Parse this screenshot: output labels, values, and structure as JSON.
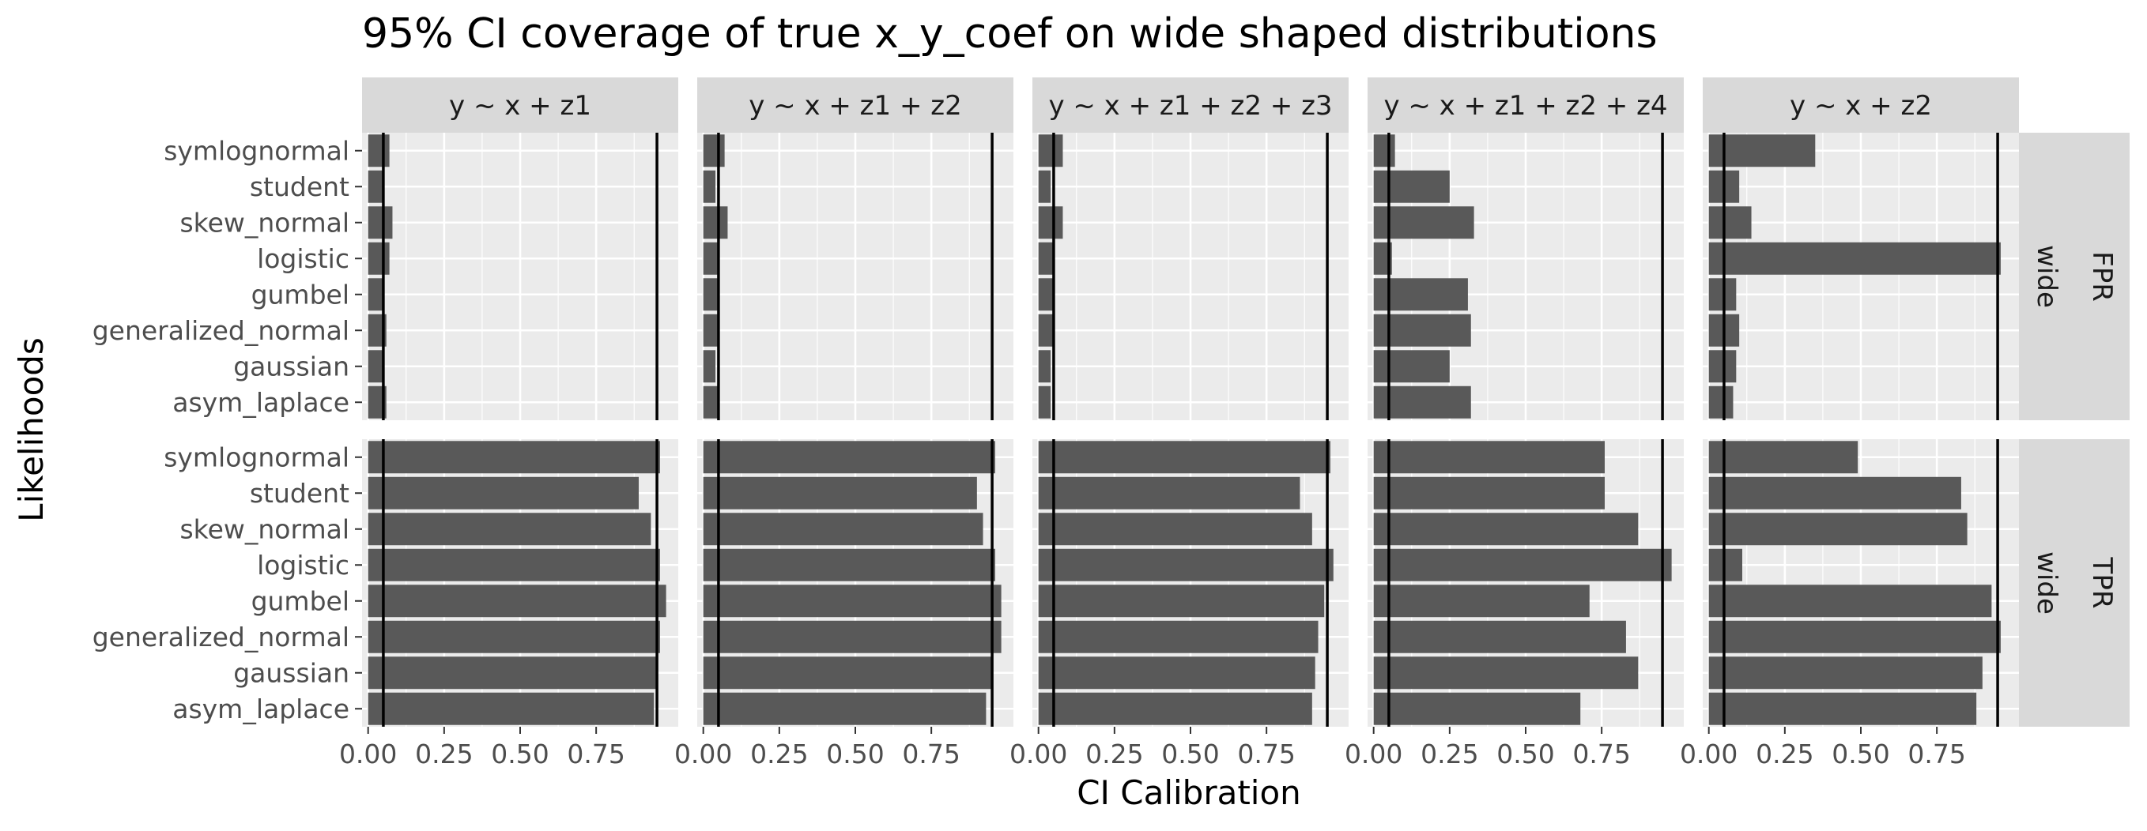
{
  "chart_data": {
    "type": "bar",
    "orientation": "horizontal",
    "title": "95% CI coverage of true x_y_coef on wide shaped distributions",
    "xlabel": "CI Calibration",
    "ylabel": "Likelihoods",
    "xlim": [
      -0.02,
      1.02
    ],
    "x_ticks": [
      "0.00",
      "0.25",
      "0.50",
      "0.75"
    ],
    "reference_lines": [
      0.05,
      0.95
    ],
    "grid": true,
    "categories": [
      "symlognormal",
      "student",
      "skew_normal",
      "logistic",
      "gumbel",
      "generalized_normal",
      "gaussian",
      "asym_laplace"
    ],
    "columns": [
      "y ~ x + z1",
      "y ~ x + z1 + z2",
      "y ~ x + z1 + z2 + z3",
      "y ~ x + z1 + z2 + z4",
      "y ~ x + z2"
    ],
    "rows": [
      {
        "metric": "FPR",
        "shape": "wide"
      },
      {
        "metric": "TPR",
        "shape": "wide"
      }
    ],
    "panels": [
      {
        "row": 0,
        "col": 0,
        "values": [
          0.07,
          0.05,
          0.08,
          0.07,
          0.05,
          0.06,
          0.05,
          0.06
        ]
      },
      {
        "row": 0,
        "col": 1,
        "values": [
          0.07,
          0.04,
          0.08,
          0.05,
          0.05,
          0.05,
          0.04,
          0.05
        ]
      },
      {
        "row": 0,
        "col": 2,
        "values": [
          0.08,
          0.04,
          0.08,
          0.05,
          0.05,
          0.05,
          0.04,
          0.04
        ]
      },
      {
        "row": 0,
        "col": 3,
        "values": [
          0.07,
          0.25,
          0.33,
          0.06,
          0.31,
          0.32,
          0.25,
          0.32
        ]
      },
      {
        "row": 0,
        "col": 4,
        "values": [
          0.35,
          0.1,
          0.14,
          0.96,
          0.09,
          0.1,
          0.09,
          0.08
        ]
      },
      {
        "row": 1,
        "col": 0,
        "values": [
          0.96,
          0.89,
          0.93,
          0.96,
          0.98,
          0.96,
          0.95,
          0.94
        ]
      },
      {
        "row": 1,
        "col": 1,
        "values": [
          0.96,
          0.9,
          0.92,
          0.96,
          0.98,
          0.98,
          0.95,
          0.93
        ]
      },
      {
        "row": 1,
        "col": 2,
        "values": [
          0.96,
          0.86,
          0.9,
          0.97,
          0.94,
          0.92,
          0.91,
          0.9
        ]
      },
      {
        "row": 1,
        "col": 3,
        "values": [
          0.76,
          0.76,
          0.87,
          0.98,
          0.71,
          0.83,
          0.87,
          0.68
        ]
      },
      {
        "row": 1,
        "col": 4,
        "values": [
          0.49,
          0.83,
          0.85,
          0.11,
          0.93,
          0.96,
          0.9,
          0.88
        ]
      }
    ]
  }
}
